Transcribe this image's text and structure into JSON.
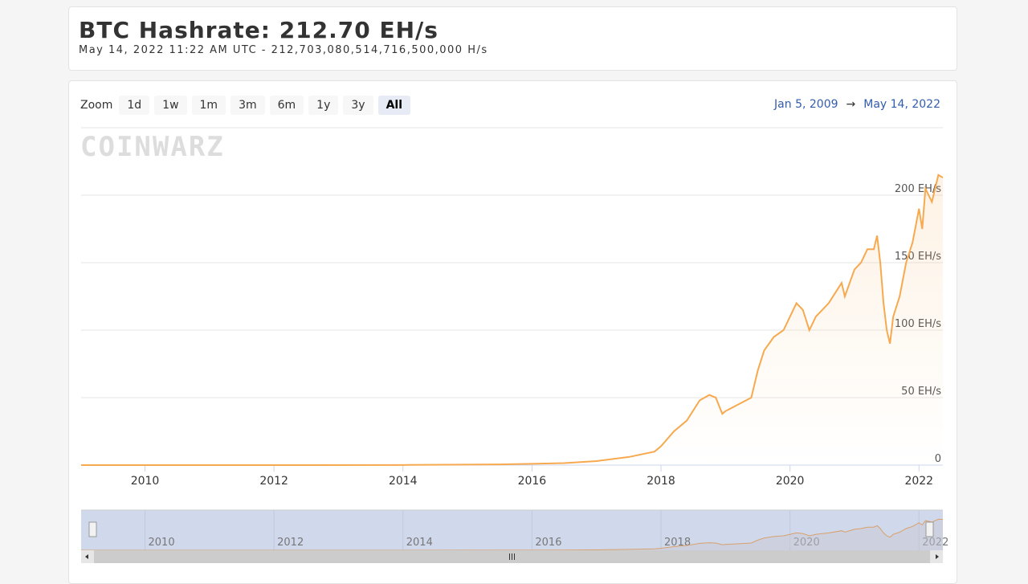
{
  "header": {
    "title": "BTC Hashrate: 212.70 EH/s",
    "subtitle": "May 14, 2022 11:22 AM UTC  -  212,703,080,514,716,500,000 H/s"
  },
  "zoom": {
    "label": "Zoom",
    "buttons": [
      "1d",
      "1w",
      "1m",
      "3m",
      "6m",
      "1y",
      "3y",
      "All"
    ],
    "selected": "All"
  },
  "range": {
    "from": "Jan 5, 2009",
    "arrow": "→",
    "to": "May 14, 2022"
  },
  "watermark": "COINWARZ",
  "chart_data": {
    "type": "area",
    "title": "",
    "xlabel": "",
    "ylabel": "",
    "x_ticks": [
      "2010",
      "2012",
      "2014",
      "2016",
      "2018",
      "2020",
      "2022"
    ],
    "y_ticks": [
      "0",
      "50 EH/s",
      "100 EH/s",
      "150 EH/s",
      "200 EH/s"
    ],
    "ylim": [
      0,
      250
    ],
    "xlim": [
      2009.01,
      2022.37
    ],
    "grid": "horizontal",
    "line_color": "#f7a94f",
    "x": [
      2009.01,
      2012,
      2014,
      2015.5,
      2016.0,
      2016.5,
      2017.0,
      2017.5,
      2017.9,
      2018.0,
      2018.2,
      2018.4,
      2018.6,
      2018.75,
      2018.85,
      2018.95,
      2019.0,
      2019.2,
      2019.4,
      2019.5,
      2019.6,
      2019.75,
      2019.9,
      2020.1,
      2020.2,
      2020.3,
      2020.4,
      2020.5,
      2020.6,
      2020.8,
      2020.85,
      2021.0,
      2021.1,
      2021.2,
      2021.3,
      2021.35,
      2021.4,
      2021.45,
      2021.5,
      2021.55,
      2021.6,
      2021.7,
      2021.8,
      2021.9,
      2022.0,
      2022.05,
      2022.1,
      2022.2,
      2022.3,
      2022.37
    ],
    "y": [
      0,
      0,
      0.1,
      0.5,
      1,
      1.5,
      3,
      6,
      10,
      14,
      25,
      33,
      48,
      52,
      50,
      38,
      40,
      45,
      50,
      70,
      85,
      95,
      100,
      120,
      115,
      100,
      110,
      115,
      120,
      135,
      125,
      145,
      150,
      160,
      160,
      170,
      150,
      120,
      100,
      90,
      110,
      125,
      150,
      165,
      190,
      175,
      205,
      195,
      215,
      213
    ],
    "navigator": {
      "x_ticks": [
        "2010",
        "2012",
        "2014",
        "2016",
        "2018",
        "2020",
        "2022"
      ]
    }
  }
}
